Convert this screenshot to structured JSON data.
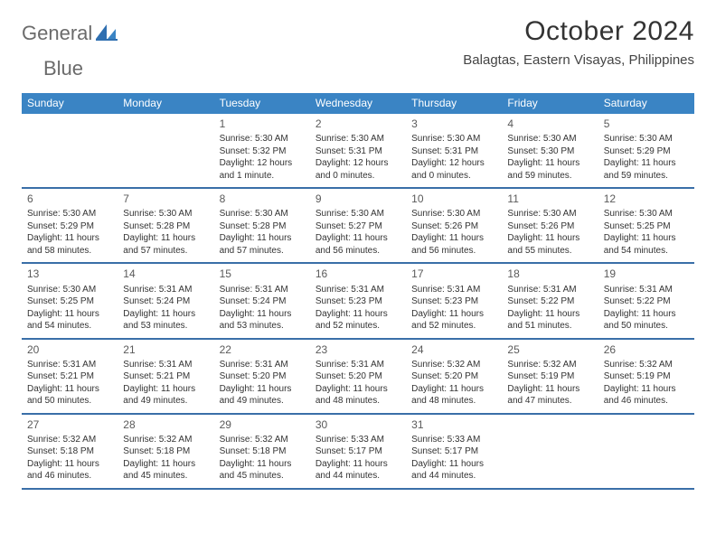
{
  "brand": {
    "word1": "General",
    "word2": "Blue"
  },
  "title": "October 2024",
  "location": "Balagtas, Eastern Visayas, Philippines",
  "header_bg": "#3a84c4",
  "week_border": "#3a6fa8",
  "weekdays": [
    "Sunday",
    "Monday",
    "Tuesday",
    "Wednesday",
    "Thursday",
    "Friday",
    "Saturday"
  ],
  "weeks": [
    [
      null,
      null,
      {
        "n": "1",
        "sr": "Sunrise: 5:30 AM",
        "ss": "Sunset: 5:32 PM",
        "dl": "Daylight: 12 hours and 1 minute."
      },
      {
        "n": "2",
        "sr": "Sunrise: 5:30 AM",
        "ss": "Sunset: 5:31 PM",
        "dl": "Daylight: 12 hours and 0 minutes."
      },
      {
        "n": "3",
        "sr": "Sunrise: 5:30 AM",
        "ss": "Sunset: 5:31 PM",
        "dl": "Daylight: 12 hours and 0 minutes."
      },
      {
        "n": "4",
        "sr": "Sunrise: 5:30 AM",
        "ss": "Sunset: 5:30 PM",
        "dl": "Daylight: 11 hours and 59 minutes."
      },
      {
        "n": "5",
        "sr": "Sunrise: 5:30 AM",
        "ss": "Sunset: 5:29 PM",
        "dl": "Daylight: 11 hours and 59 minutes."
      }
    ],
    [
      {
        "n": "6",
        "sr": "Sunrise: 5:30 AM",
        "ss": "Sunset: 5:29 PM",
        "dl": "Daylight: 11 hours and 58 minutes."
      },
      {
        "n": "7",
        "sr": "Sunrise: 5:30 AM",
        "ss": "Sunset: 5:28 PM",
        "dl": "Daylight: 11 hours and 57 minutes."
      },
      {
        "n": "8",
        "sr": "Sunrise: 5:30 AM",
        "ss": "Sunset: 5:28 PM",
        "dl": "Daylight: 11 hours and 57 minutes."
      },
      {
        "n": "9",
        "sr": "Sunrise: 5:30 AM",
        "ss": "Sunset: 5:27 PM",
        "dl": "Daylight: 11 hours and 56 minutes."
      },
      {
        "n": "10",
        "sr": "Sunrise: 5:30 AM",
        "ss": "Sunset: 5:26 PM",
        "dl": "Daylight: 11 hours and 56 minutes."
      },
      {
        "n": "11",
        "sr": "Sunrise: 5:30 AM",
        "ss": "Sunset: 5:26 PM",
        "dl": "Daylight: 11 hours and 55 minutes."
      },
      {
        "n": "12",
        "sr": "Sunrise: 5:30 AM",
        "ss": "Sunset: 5:25 PM",
        "dl": "Daylight: 11 hours and 54 minutes."
      }
    ],
    [
      {
        "n": "13",
        "sr": "Sunrise: 5:30 AM",
        "ss": "Sunset: 5:25 PM",
        "dl": "Daylight: 11 hours and 54 minutes."
      },
      {
        "n": "14",
        "sr": "Sunrise: 5:31 AM",
        "ss": "Sunset: 5:24 PM",
        "dl": "Daylight: 11 hours and 53 minutes."
      },
      {
        "n": "15",
        "sr": "Sunrise: 5:31 AM",
        "ss": "Sunset: 5:24 PM",
        "dl": "Daylight: 11 hours and 53 minutes."
      },
      {
        "n": "16",
        "sr": "Sunrise: 5:31 AM",
        "ss": "Sunset: 5:23 PM",
        "dl": "Daylight: 11 hours and 52 minutes."
      },
      {
        "n": "17",
        "sr": "Sunrise: 5:31 AM",
        "ss": "Sunset: 5:23 PM",
        "dl": "Daylight: 11 hours and 52 minutes."
      },
      {
        "n": "18",
        "sr": "Sunrise: 5:31 AM",
        "ss": "Sunset: 5:22 PM",
        "dl": "Daylight: 11 hours and 51 minutes."
      },
      {
        "n": "19",
        "sr": "Sunrise: 5:31 AM",
        "ss": "Sunset: 5:22 PM",
        "dl": "Daylight: 11 hours and 50 minutes."
      }
    ],
    [
      {
        "n": "20",
        "sr": "Sunrise: 5:31 AM",
        "ss": "Sunset: 5:21 PM",
        "dl": "Daylight: 11 hours and 50 minutes."
      },
      {
        "n": "21",
        "sr": "Sunrise: 5:31 AM",
        "ss": "Sunset: 5:21 PM",
        "dl": "Daylight: 11 hours and 49 minutes."
      },
      {
        "n": "22",
        "sr": "Sunrise: 5:31 AM",
        "ss": "Sunset: 5:20 PM",
        "dl": "Daylight: 11 hours and 49 minutes."
      },
      {
        "n": "23",
        "sr": "Sunrise: 5:31 AM",
        "ss": "Sunset: 5:20 PM",
        "dl": "Daylight: 11 hours and 48 minutes."
      },
      {
        "n": "24",
        "sr": "Sunrise: 5:32 AM",
        "ss": "Sunset: 5:20 PM",
        "dl": "Daylight: 11 hours and 48 minutes."
      },
      {
        "n": "25",
        "sr": "Sunrise: 5:32 AM",
        "ss": "Sunset: 5:19 PM",
        "dl": "Daylight: 11 hours and 47 minutes."
      },
      {
        "n": "26",
        "sr": "Sunrise: 5:32 AM",
        "ss": "Sunset: 5:19 PM",
        "dl": "Daylight: 11 hours and 46 minutes."
      }
    ],
    [
      {
        "n": "27",
        "sr": "Sunrise: 5:32 AM",
        "ss": "Sunset: 5:18 PM",
        "dl": "Daylight: 11 hours and 46 minutes."
      },
      {
        "n": "28",
        "sr": "Sunrise: 5:32 AM",
        "ss": "Sunset: 5:18 PM",
        "dl": "Daylight: 11 hours and 45 minutes."
      },
      {
        "n": "29",
        "sr": "Sunrise: 5:32 AM",
        "ss": "Sunset: 5:18 PM",
        "dl": "Daylight: 11 hours and 45 minutes."
      },
      {
        "n": "30",
        "sr": "Sunrise: 5:33 AM",
        "ss": "Sunset: 5:17 PM",
        "dl": "Daylight: 11 hours and 44 minutes."
      },
      {
        "n": "31",
        "sr": "Sunrise: 5:33 AM",
        "ss": "Sunset: 5:17 PM",
        "dl": "Daylight: 11 hours and 44 minutes."
      },
      null,
      null
    ]
  ]
}
